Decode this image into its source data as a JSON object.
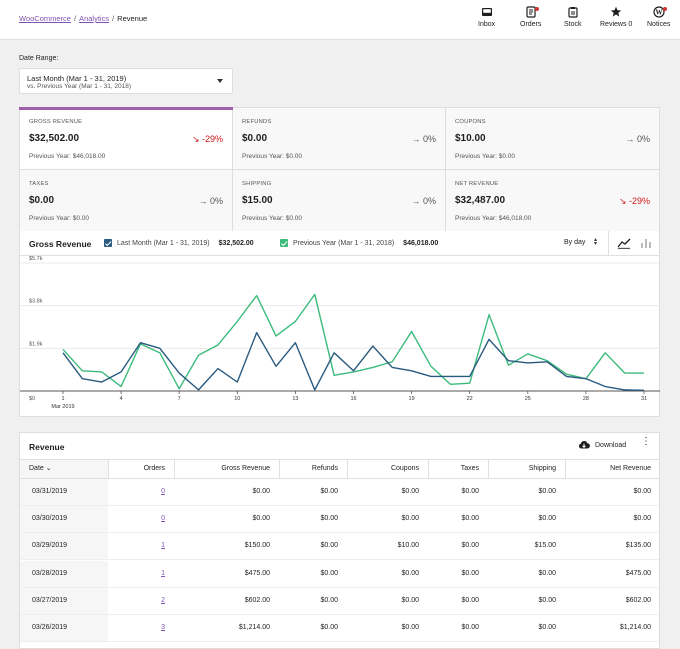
{
  "breadcrumb": {
    "root": "WooCommerce",
    "section": "Analytics",
    "current": "Revenue"
  },
  "nav": [
    {
      "label": "Inbox",
      "icon": "inbox-icon"
    },
    {
      "label": "Orders",
      "icon": "orders-icon"
    },
    {
      "label": "Stock",
      "icon": "stock-icon"
    },
    {
      "label": "Reviews 0",
      "icon": "star-icon"
    },
    {
      "label": "Notices",
      "icon": "wordpress-icon"
    }
  ],
  "date_range": {
    "label": "Date Range:",
    "selected": "Last Month (Mar 1 - 31, 2019)",
    "compare": "vs. Previous Year (Mar 1 - 31, 2018)"
  },
  "summary": [
    {
      "label": "Gross Revenue",
      "value": "$32,502.00",
      "previous": "Previous Year: $46,018.00",
      "delta": "-29%",
      "trend": "down"
    },
    {
      "label": "Refunds",
      "value": "$0.00",
      "previous": "Previous Year: $0.00",
      "delta": "0%",
      "trend": "flat"
    },
    {
      "label": "Coupons",
      "value": "$10.00",
      "previous": "Previous Year: $0.00",
      "delta": "0%",
      "trend": "flat"
    },
    {
      "label": "Taxes",
      "value": "$0.00",
      "previous": "Previous Year: $0.00",
      "delta": "0%",
      "trend": "flat"
    },
    {
      "label": "Shipping",
      "value": "$15.00",
      "previous": "Previous Year: $0.00",
      "delta": "0%",
      "trend": "flat"
    },
    {
      "label": "Net Revenue",
      "value": "$32,487.00",
      "previous": "Previous Year: $46,018.00",
      "delta": "-29%",
      "trend": "down"
    }
  ],
  "chart_header": {
    "title": "Gross Revenue",
    "interval": "By day",
    "legend": [
      {
        "label": "Last Month (Mar 1 - 31, 2019)",
        "total": "$32,502.00",
        "color": "#2a5a7f"
      },
      {
        "label": "Previous Year (Mar 1 - 31, 2018)",
        "total": "$46,018.00",
        "color": "#3cbb7c"
      }
    ]
  },
  "chart_data": {
    "type": "line",
    "x": [
      1,
      2,
      3,
      4,
      5,
      6,
      7,
      8,
      9,
      10,
      11,
      12,
      13,
      14,
      15,
      16,
      17,
      18,
      19,
      20,
      21,
      22,
      23,
      24,
      25,
      26,
      27,
      28,
      29,
      30,
      31
    ],
    "x_ticks": [
      "1",
      "4",
      "7",
      "10",
      "13",
      "16",
      "19",
      "22",
      "25",
      "28",
      "31"
    ],
    "x_sublabel": "Mar 2019",
    "y_ticks": [
      "$0",
      "$1.9k",
      "$3.8k",
      "$5.7k"
    ],
    "ylim": [
      0,
      5700
    ],
    "series": [
      {
        "name": "Last Month (Mar 1 - 31, 2019)",
        "color": "#2a5a7f",
        "values": [
          1700,
          550,
          400,
          850,
          2150,
          1900,
          800,
          50,
          1000,
          400,
          2600,
          1100,
          2150,
          50,
          1700,
          900,
          2000,
          1050,
          900,
          650,
          650,
          650,
          2300,
          1350,
          1250,
          1300,
          650,
          550,
          200,
          50,
          30
        ]
      },
      {
        "name": "Previous Year (Mar 1 - 31, 2018)",
        "color": "#3cbb7c",
        "values": [
          1850,
          900,
          850,
          200,
          2100,
          1700,
          100,
          1600,
          2050,
          3100,
          4250,
          2450,
          3100,
          4300,
          700,
          850,
          1050,
          1300,
          2650,
          1100,
          300,
          350,
          3400,
          1150,
          1650,
          1350,
          750,
          550,
          1700,
          800,
          800
        ]
      }
    ]
  },
  "table": {
    "title": "Revenue",
    "download": "Download",
    "columns": [
      "Date",
      "Orders",
      "Gross Revenue",
      "Refunds",
      "Coupons",
      "Taxes",
      "Shipping",
      "Net Revenue"
    ],
    "rows": [
      [
        "03/31/2019",
        "0",
        "$0.00",
        "$0.00",
        "$0.00",
        "$0.00",
        "$0.00",
        "$0.00"
      ],
      [
        "03/30/2019",
        "0",
        "$0.00",
        "$0.00",
        "$0.00",
        "$0.00",
        "$0.00",
        "$0.00"
      ],
      [
        "03/29/2019",
        "1",
        "$150.00",
        "$0.00",
        "$10.00",
        "$0.00",
        "$15.00",
        "$135.00"
      ],
      [
        "03/28/2019",
        "1",
        "$475.00",
        "$0.00",
        "$0.00",
        "$0.00",
        "$0.00",
        "$475.00"
      ],
      [
        "03/27/2019",
        "2",
        "$602.00",
        "$0.00",
        "$0.00",
        "$0.00",
        "$0.00",
        "$602.00"
      ],
      [
        "03/26/2019",
        "3",
        "$1,214.00",
        "$0.00",
        "$0.00",
        "$0.00",
        "$0.00",
        "$1,214.00"
      ]
    ]
  }
}
